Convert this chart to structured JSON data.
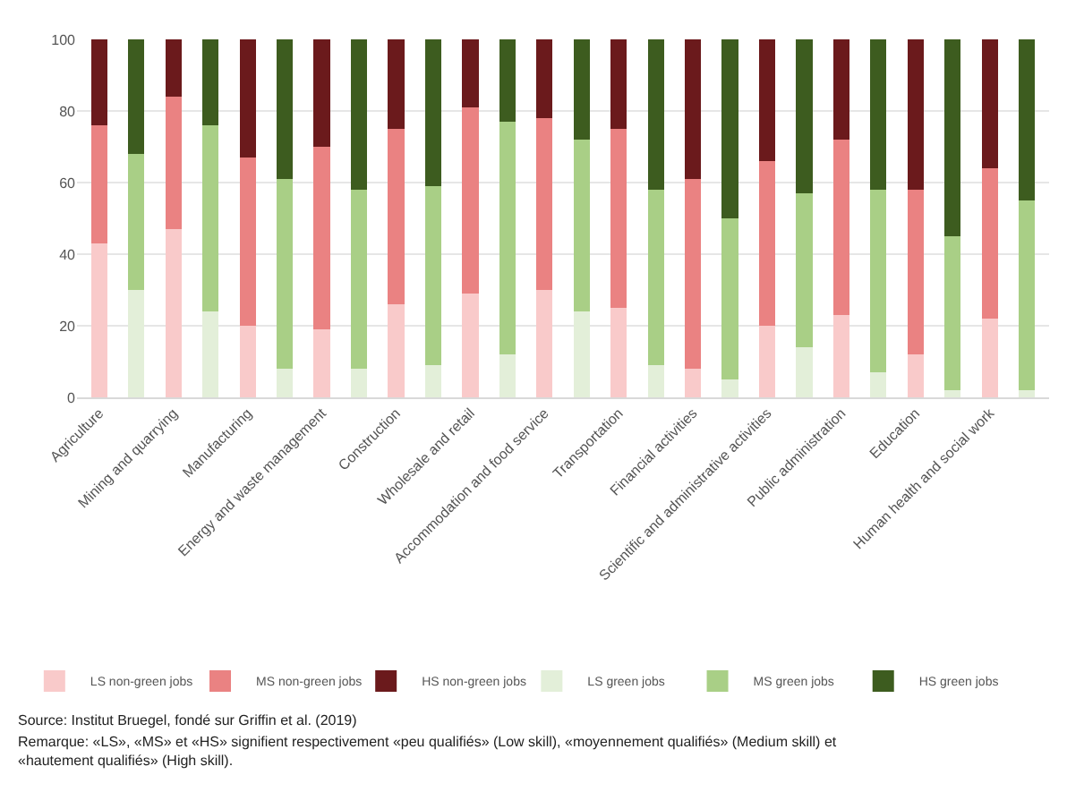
{
  "chart_data": {
    "type": "bar",
    "stacked": true,
    "categories": [
      "Agriculture",
      null,
      "Mining and quarrying",
      null,
      "Manufacturing",
      null,
      "Energy and waste management",
      null,
      "Construction",
      null,
      "Wholesale and retail",
      null,
      "Accommodation and food service",
      null,
      "Transportation",
      null,
      "Financial activities",
      null,
      "Scientific and administrative activities",
      null,
      "Public administration",
      null,
      "Education",
      null,
      "Human health and social work",
      null
    ],
    "series": [
      {
        "name": "LS non-green jobs",
        "color": "#f9caca",
        "values": [
          43,
          null,
          47,
          null,
          20,
          null,
          19,
          null,
          26,
          null,
          29,
          null,
          30,
          null,
          25,
          null,
          8,
          null,
          20,
          null,
          23,
          null,
          12,
          null,
          22,
          null
        ]
      },
      {
        "name": "MS non-green jobs",
        "color": "#ea8282",
        "values": [
          33,
          null,
          37,
          null,
          47,
          null,
          51,
          null,
          49,
          null,
          52,
          null,
          48,
          null,
          50,
          null,
          53,
          null,
          46,
          null,
          49,
          null,
          46,
          null,
          42,
          null
        ]
      },
      {
        "name": "HS non-green jobs",
        "color": "#6b1a1c",
        "values": [
          24,
          null,
          16,
          null,
          33,
          null,
          30,
          null,
          25,
          null,
          19,
          null,
          22,
          null,
          25,
          null,
          39,
          null,
          34,
          null,
          28,
          null,
          42,
          null,
          36,
          null
        ]
      },
      {
        "name": "LS green jobs",
        "color": "#e3efd9",
        "values": [
          null,
          30,
          null,
          24,
          null,
          8,
          null,
          8,
          null,
          9,
          null,
          12,
          null,
          24,
          null,
          9,
          null,
          5,
          null,
          14,
          null,
          7,
          null,
          2,
          null,
          2
        ]
      },
      {
        "name": "MS green jobs",
        "color": "#a9cf86",
        "values": [
          null,
          38,
          null,
          52,
          null,
          53,
          null,
          50,
          null,
          50,
          null,
          65,
          null,
          48,
          null,
          49,
          null,
          45,
          null,
          43,
          null,
          51,
          null,
          43,
          null,
          53
        ]
      },
      {
        "name": "HS green jobs",
        "color": "#3d5c1f",
        "values": [
          null,
          32,
          null,
          24,
          null,
          39,
          null,
          42,
          null,
          41,
          null,
          23,
          null,
          28,
          null,
          42,
          null,
          50,
          null,
          43,
          null,
          42,
          null,
          55,
          null,
          45
        ]
      }
    ],
    "ylim": [
      0,
      100
    ],
    "yticks": [
      0,
      20,
      40,
      60,
      80,
      100
    ],
    "grid": "y",
    "legend": "bottom",
    "annotations": [
      "Source: Institut Bruegel, fondé sur Griffin et al. (2019)",
      "Remarque: «LS», «MS» et «HS» signifient respectivement «peu qualifiés» (Low skill), «moyennement qualifiés» (Medium skill) et «hautement qualifiés» (High skill)."
    ]
  }
}
